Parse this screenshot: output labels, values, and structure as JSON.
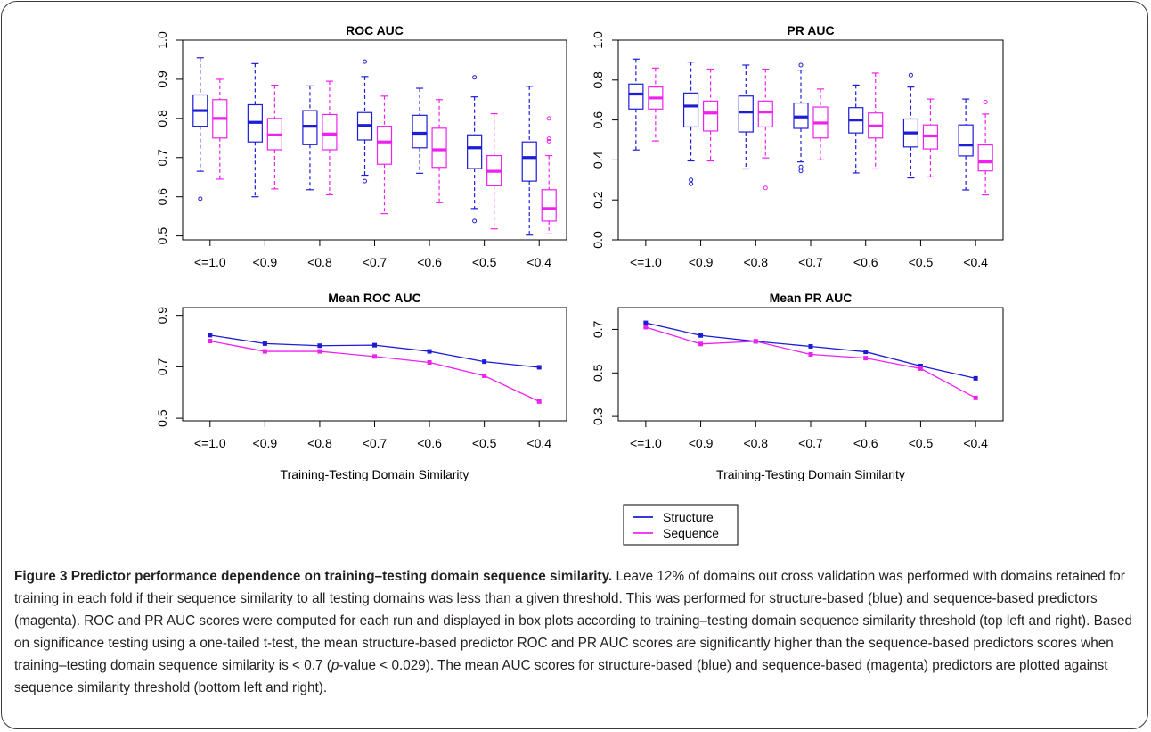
{
  "colors": {
    "structure": "#1d1dd6",
    "sequence": "#ee22ee"
  },
  "legend": {
    "items": [
      "Structure",
      "Sequence"
    ]
  },
  "caption": {
    "title": "Figure 3 Predictor performance dependence on training–testing domain sequence similarity.",
    "text_1": " Leave 12% of domains out cross validation was performed with domains retained for training in each fold if their sequence similarity to all testing domains was less than a given threshold. This was performed for structure-based (blue) and sequence-based predictors (magenta). ROC and PR AUC scores were computed for each run and displayed in box plots according to training–testing domain sequence similarity threshold (top left and right). Based on significance testing using a one-tailed t-test, the mean structure-based predictor ROC and PR AUC scores are significantly higher than the sequence-based predictors scores when training–testing domain sequence similarity is < 0.7 (",
    "italic": "p",
    "text_2": "-value < 0.029). The mean AUC scores for structure-based (blue) and sequence-based (magenta) predictors are plotted against sequence similarity threshold (bottom left and right)."
  },
  "chart_data": [
    {
      "type": "box",
      "title": "ROC AUC",
      "xlabel": "",
      "ylabel": "",
      "categories": [
        "<=1.0",
        "<0.9",
        "<0.8",
        "<0.7",
        "<0.6",
        "<0.5",
        "<0.4"
      ],
      "ylim": [
        0.49,
        1.0
      ],
      "yticks": [
        "0.5",
        "0.6",
        "0.7",
        "0.8",
        "0.9",
        "1.0"
      ],
      "series": [
        {
          "name": "Structure",
          "boxes": [
            {
              "whislo": 0.665,
              "q1": 0.78,
              "med": 0.82,
              "q3": 0.86,
              "whishi": 0.955,
              "fliers": [
                0.595
              ]
            },
            {
              "whislo": 0.6,
              "q1": 0.74,
              "med": 0.79,
              "q3": 0.835,
              "whishi": 0.94,
              "fliers": []
            },
            {
              "whislo": 0.618,
              "q1": 0.733,
              "med": 0.78,
              "q3": 0.82,
              "whishi": 0.883,
              "fliers": []
            },
            {
              "whislo": 0.655,
              "q1": 0.745,
              "med": 0.782,
              "q3": 0.815,
              "whishi": 0.907,
              "fliers": [
                0.945,
                0.64
              ]
            },
            {
              "whislo": 0.66,
              "q1": 0.725,
              "med": 0.762,
              "q3": 0.808,
              "whishi": 0.877,
              "fliers": []
            },
            {
              "whislo": 0.57,
              "q1": 0.672,
              "med": 0.725,
              "q3": 0.758,
              "whishi": 0.855,
              "fliers": [
                0.905,
                0.538
              ]
            },
            {
              "whislo": 0.502,
              "q1": 0.64,
              "med": 0.7,
              "q3": 0.74,
              "whishi": 0.882,
              "fliers": []
            }
          ]
        },
        {
          "name": "Sequence",
          "boxes": [
            {
              "whislo": 0.645,
              "q1": 0.75,
              "med": 0.8,
              "q3": 0.848,
              "whishi": 0.9,
              "fliers": []
            },
            {
              "whislo": 0.62,
              "q1": 0.72,
              "med": 0.758,
              "q3": 0.8,
              "whishi": 0.885,
              "fliers": []
            },
            {
              "whislo": 0.605,
              "q1": 0.72,
              "med": 0.76,
              "q3": 0.81,
              "whishi": 0.895,
              "fliers": []
            },
            {
              "whislo": 0.557,
              "q1": 0.683,
              "med": 0.74,
              "q3": 0.78,
              "whishi": 0.857,
              "fliers": []
            },
            {
              "whislo": 0.585,
              "q1": 0.675,
              "med": 0.72,
              "q3": 0.775,
              "whishi": 0.848,
              "fliers": []
            },
            {
              "whislo": 0.518,
              "q1": 0.628,
              "med": 0.665,
              "q3": 0.705,
              "whishi": 0.812,
              "fliers": []
            },
            {
              "whislo": 0.505,
              "q1": 0.538,
              "med": 0.57,
              "q3": 0.618,
              "whishi": 0.705,
              "fliers": [
                0.8,
                0.748,
                0.742
              ]
            }
          ]
        }
      ]
    },
    {
      "type": "box",
      "title": "PR AUC",
      "xlabel": "",
      "ylabel": "",
      "categories": [
        "<=1.0",
        "<0.9",
        "<0.8",
        "<0.7",
        "<0.6",
        "<0.5",
        "<0.4"
      ],
      "ylim": [
        0.0,
        1.0
      ],
      "yticks": [
        "0.0",
        "0.2",
        "0.4",
        "0.6",
        "0.8",
        "1.0"
      ],
      "series": [
        {
          "name": "Structure",
          "boxes": [
            {
              "whislo": 0.45,
              "q1": 0.655,
              "med": 0.73,
              "q3": 0.78,
              "whishi": 0.905,
              "fliers": []
            },
            {
              "whislo": 0.395,
              "q1": 0.565,
              "med": 0.67,
              "q3": 0.735,
              "whishi": 0.89,
              "fliers": [
                0.3,
                0.28
              ]
            },
            {
              "whislo": 0.355,
              "q1": 0.54,
              "med": 0.64,
              "q3": 0.72,
              "whishi": 0.875,
              "fliers": []
            },
            {
              "whislo": 0.39,
              "q1": 0.558,
              "med": 0.615,
              "q3": 0.685,
              "whishi": 0.85,
              "fliers": [
                0.875,
                0.365,
                0.345
              ]
            },
            {
              "whislo": 0.335,
              "q1": 0.535,
              "med": 0.6,
              "q3": 0.662,
              "whishi": 0.775,
              "fliers": []
            },
            {
              "whislo": 0.31,
              "q1": 0.465,
              "med": 0.535,
              "q3": 0.605,
              "whishi": 0.765,
              "fliers": [
                0.825
              ]
            },
            {
              "whislo": 0.25,
              "q1": 0.42,
              "med": 0.475,
              "q3": 0.575,
              "whishi": 0.705,
              "fliers": []
            }
          ]
        },
        {
          "name": "Sequence",
          "boxes": [
            {
              "whislo": 0.495,
              "q1": 0.655,
              "med": 0.71,
              "q3": 0.765,
              "whishi": 0.86,
              "fliers": []
            },
            {
              "whislo": 0.395,
              "q1": 0.545,
              "med": 0.635,
              "q3": 0.695,
              "whishi": 0.855,
              "fliers": []
            },
            {
              "whislo": 0.41,
              "q1": 0.565,
              "med": 0.64,
              "q3": 0.695,
              "whishi": 0.855,
              "fliers": [
                0.26
              ]
            },
            {
              "whislo": 0.4,
              "q1": 0.51,
              "med": 0.585,
              "q3": 0.665,
              "whishi": 0.755,
              "fliers": []
            },
            {
              "whislo": 0.355,
              "q1": 0.51,
              "med": 0.57,
              "q3": 0.635,
              "whishi": 0.835,
              "fliers": []
            },
            {
              "whislo": 0.315,
              "q1": 0.455,
              "med": 0.52,
              "q3": 0.575,
              "whishi": 0.705,
              "fliers": []
            },
            {
              "whislo": 0.225,
              "q1": 0.345,
              "med": 0.39,
              "q3": 0.475,
              "whishi": 0.63,
              "fliers": [
                0.69
              ]
            }
          ]
        }
      ]
    },
    {
      "type": "line",
      "title": "Mean ROC AUC",
      "xlabel": "Training-Testing Domain Similarity",
      "ylabel": "",
      "categories": [
        "<=1.0",
        "<0.9",
        "<0.8",
        "<0.7",
        "<0.6",
        "<0.5",
        "<0.4"
      ],
      "ylim": [
        0.49,
        0.93
      ],
      "yticks": [
        "0.5",
        "0.7",
        "0.9"
      ],
      "series": [
        {
          "name": "Structure",
          "values": [
            0.823,
            0.79,
            0.782,
            0.784,
            0.76,
            0.72,
            0.698
          ]
        },
        {
          "name": "Sequence",
          "values": [
            0.8,
            0.76,
            0.76,
            0.74,
            0.717,
            0.665,
            0.565
          ]
        }
      ]
    },
    {
      "type": "line",
      "title": "Mean PR AUC",
      "xlabel": "Training-Testing Domain Similarity",
      "ylabel": "",
      "categories": [
        "<=1.0",
        "<0.9",
        "<0.8",
        "<0.7",
        "<0.6",
        "<0.5",
        "<0.4"
      ],
      "ylim": [
        0.28,
        0.8
      ],
      "yticks": [
        "0.3",
        "0.5",
        "0.7"
      ],
      "series": [
        {
          "name": "Structure",
          "values": [
            0.73,
            0.672,
            0.645,
            0.622,
            0.597,
            0.532,
            0.475
          ]
        },
        {
          "name": "Sequence",
          "values": [
            0.71,
            0.633,
            0.645,
            0.585,
            0.568,
            0.52,
            0.385
          ]
        }
      ]
    }
  ]
}
